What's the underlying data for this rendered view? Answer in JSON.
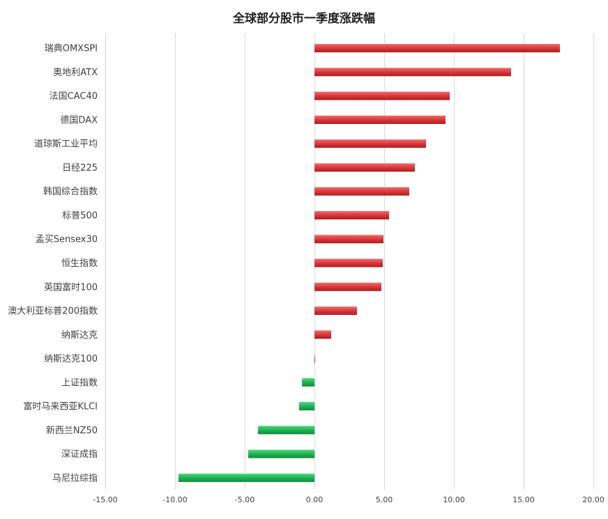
{
  "chart_data": {
    "type": "bar",
    "orientation": "horizontal",
    "title": "全球部分股市一季度涨跌幅",
    "categories": [
      "瑞典OMXSPI",
      "奥地利ATX",
      "法国CAC40",
      "德国DAX",
      "道琼斯工业平均",
      "日经225",
      "韩国综合指数",
      "标普500",
      "孟买Sensex30",
      "恒生指数",
      "英国富时100",
      "澳大利亚标普200指数",
      "纳斯达克",
      "纳斯达克100",
      "上证指数",
      "富时马来西亚KLCI",
      "新西兰NZ50",
      "深证成指",
      "马尼拉综指"
    ],
    "values": [
      17.6,
      14.1,
      9.7,
      9.4,
      8.0,
      7.2,
      6.8,
      5.35,
      4.95,
      4.9,
      4.8,
      3.05,
      1.2,
      0.05,
      -0.9,
      -1.1,
      -4.05,
      -4.75,
      -9.75
    ],
    "xlim": [
      -15,
      20
    ],
    "xticks": [
      "-15.00",
      "-10.00",
      "-5.00",
      "0.00",
      "5.00",
      "10.00",
      "15.00",
      "20.00"
    ],
    "xtick_values": [
      -15,
      -10,
      -5,
      0,
      5,
      10,
      15,
      20
    ],
    "grid": true,
    "colors": {
      "positive": "#d9383a",
      "negative": "#1db552",
      "grid": "#d9d9d9",
      "text": "#404040"
    }
  }
}
